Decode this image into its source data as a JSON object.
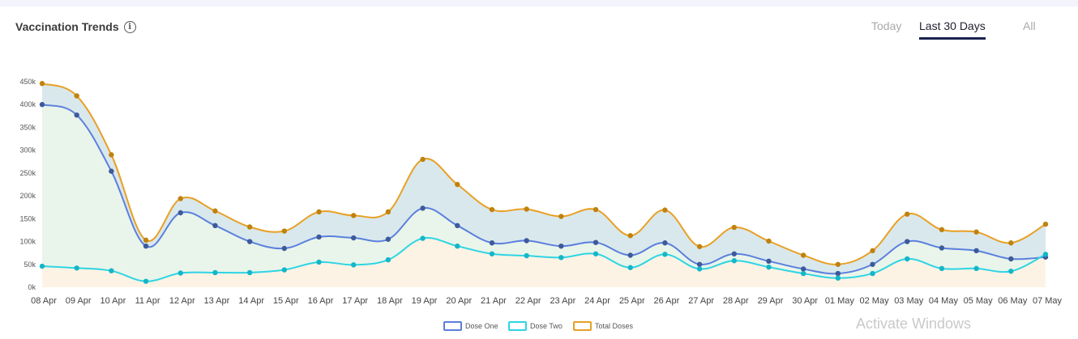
{
  "header": {
    "title": "Vaccination Trends",
    "info_icon": "info-icon"
  },
  "tabs": [
    {
      "label": "Today",
      "active": false
    },
    {
      "label": "Last 30 Days",
      "active": true
    },
    {
      "label": "All",
      "active": false
    }
  ],
  "watermark": "Activate Windows",
  "colors": {
    "dose_one": "#5b7fde",
    "dose_two": "#2fd4e4",
    "total_doses": "#e8a025",
    "tab_active_underline": "#1a2250"
  },
  "chart_data": {
    "type": "area",
    "title": "",
    "xlabel": "",
    "ylabel": "",
    "ylim": [
      0,
      450000
    ],
    "yticks": [
      {
        "value": 0,
        "label": "0k"
      },
      {
        "value": 50000,
        "label": "50k"
      },
      {
        "value": 100000,
        "label": "100k"
      },
      {
        "value": 150000,
        "label": "150k"
      },
      {
        "value": 200000,
        "label": "200k"
      },
      {
        "value": 250000,
        "label": "250k"
      },
      {
        "value": 300000,
        "label": "300k"
      },
      {
        "value": 350000,
        "label": "350k"
      },
      {
        "value": 400000,
        "label": "400k"
      },
      {
        "value": 450000,
        "label": "450k"
      }
    ],
    "categories": [
      "08 Apr",
      "09 Apr",
      "10 Apr",
      "11 Apr",
      "12 Apr",
      "13 Apr",
      "14 Apr",
      "15 Apr",
      "16 Apr",
      "17 Apr",
      "18 Apr",
      "19 Apr",
      "20 Apr",
      "21 Apr",
      "22 Apr",
      "23 Apr",
      "24 Apr",
      "25 Apr",
      "26 Apr",
      "27 Apr",
      "28 Apr",
      "29 Apr",
      "30 Apr",
      "01 May",
      "02 May",
      "03 May",
      "04 May",
      "05 May",
      "06 May",
      "07 May"
    ],
    "grid": false,
    "legend_position": "bottom",
    "series": [
      {
        "name": "Dose One",
        "color": "#5b7fde",
        "values": [
          400000,
          377000,
          254000,
          90000,
          163000,
          135000,
          100000,
          85000,
          110000,
          108000,
          105000,
          173000,
          135000,
          97000,
          102000,
          90000,
          98000,
          70000,
          97000,
          50000,
          73000,
          57000,
          40000,
          30000,
          50000,
          100000,
          86000,
          80000,
          62000,
          66000
        ]
      },
      {
        "name": "Dose Two",
        "color": "#2fd4e4",
        "values": [
          46000,
          42000,
          36000,
          13000,
          31000,
          32000,
          32000,
          38000,
          55000,
          49000,
          60000,
          107000,
          90000,
          73000,
          69000,
          65000,
          73000,
          43000,
          72000,
          40000,
          58000,
          44000,
          30000,
          20000,
          30000,
          62000,
          41000,
          41000,
          35000,
          72000
        ]
      },
      {
        "name": "Total Doses",
        "color": "#e8a025",
        "values": [
          446000,
          419000,
          290000,
          103000,
          194000,
          167000,
          132000,
          123000,
          165000,
          157000,
          165000,
          280000,
          225000,
          170000,
          171000,
          155000,
          170000,
          113000,
          169000,
          89000,
          131000,
          101000,
          70000,
          50000,
          80000,
          160000,
          126000,
          121000,
          97000,
          138000
        ]
      }
    ]
  }
}
